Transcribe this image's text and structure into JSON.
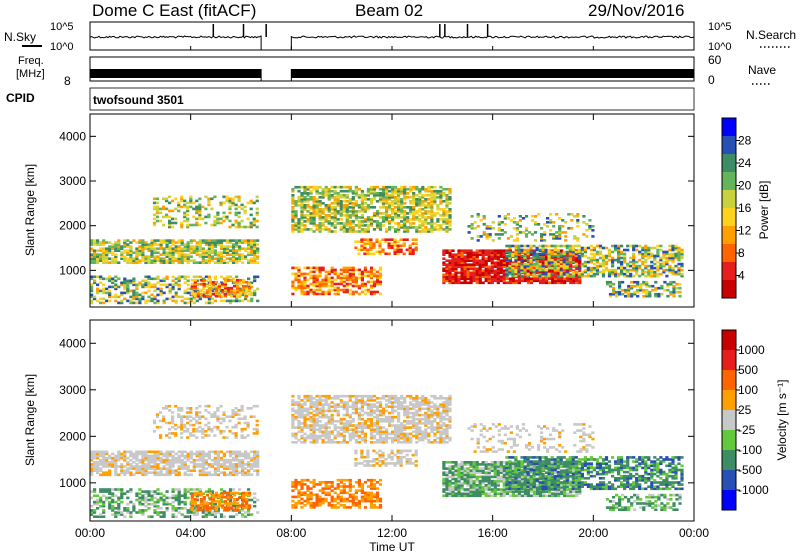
{
  "header": {
    "station": "Dome C East (fitACF)",
    "beam": "Beam 02",
    "date": "29/Nov/2016"
  },
  "sky_panel": {
    "left_label": "N.Sky",
    "right_label": "N.Search",
    "left_ticks": [
      "10^5",
      "10^0"
    ],
    "right_ticks": [
      "10^5",
      "10^0"
    ]
  },
  "freq_panel": {
    "left_label_line1": "Freq.",
    "left_label_line2": "[MHz]",
    "right_label": "Nave",
    "left_ticks": [
      "",
      "8"
    ],
    "right_ticks": [
      "60",
      "0"
    ]
  },
  "cpid": {
    "label": "CPID",
    "value": "twofsound 3501"
  },
  "colors": {
    "power_scale": [
      "#0000ff",
      "#2850b4",
      "#3c8c64",
      "#64b45a",
      "#c8d23c",
      "#ffd21e",
      "#ffa000",
      "#ff6400",
      "#e61e1e",
      "#c80000"
    ],
    "velocity_scale": [
      "#0000ff",
      "#2850b4",
      "#3c8c64",
      "#64c83c",
      "#c8c8c8",
      "#ffa000",
      "#ff6400",
      "#e61e1e",
      "#c80000"
    ]
  },
  "chart_data": [
    {
      "type": "heatmap",
      "name": "power",
      "ylabel": "Slant Range [km]",
      "xlabel": "Time UT",
      "xlim_hours": [
        0,
        24
      ],
      "ylim": [
        180,
        4500
      ],
      "yticks": [
        "1000",
        "2000",
        "3000",
        "4000"
      ],
      "xticks": [
        "00:00",
        "04:00",
        "08:00",
        "12:00",
        "16:00",
        "20:00",
        "00:00"
      ],
      "colorbar": {
        "label": "Power [dB]",
        "ticks": [
          "28",
          "24",
          "20",
          "16",
          "12",
          "8",
          "4"
        ],
        "range": [
          0,
          30
        ]
      },
      "data_gap_hours": [
        6.8,
        8.0
      ]
    },
    {
      "type": "heatmap",
      "name": "velocity",
      "ylabel": "Slant Range [km]",
      "xlabel": "Time UT",
      "xlim_hours": [
        0,
        24
      ],
      "ylim": [
        180,
        4500
      ],
      "yticks": [
        "1000",
        "2000",
        "3000",
        "4000"
      ],
      "xticks": [
        "00:00",
        "04:00",
        "08:00",
        "12:00",
        "16:00",
        "20:00",
        "00:00"
      ],
      "colorbar": {
        "label": "Velocity [m s⁻¹]",
        "ticks": [
          "1000",
          "500",
          "100",
          "25",
          "-25",
          "-100",
          "-500",
          "-1000"
        ]
      },
      "data_gap_hours": [
        6.8,
        8.0
      ]
    }
  ]
}
